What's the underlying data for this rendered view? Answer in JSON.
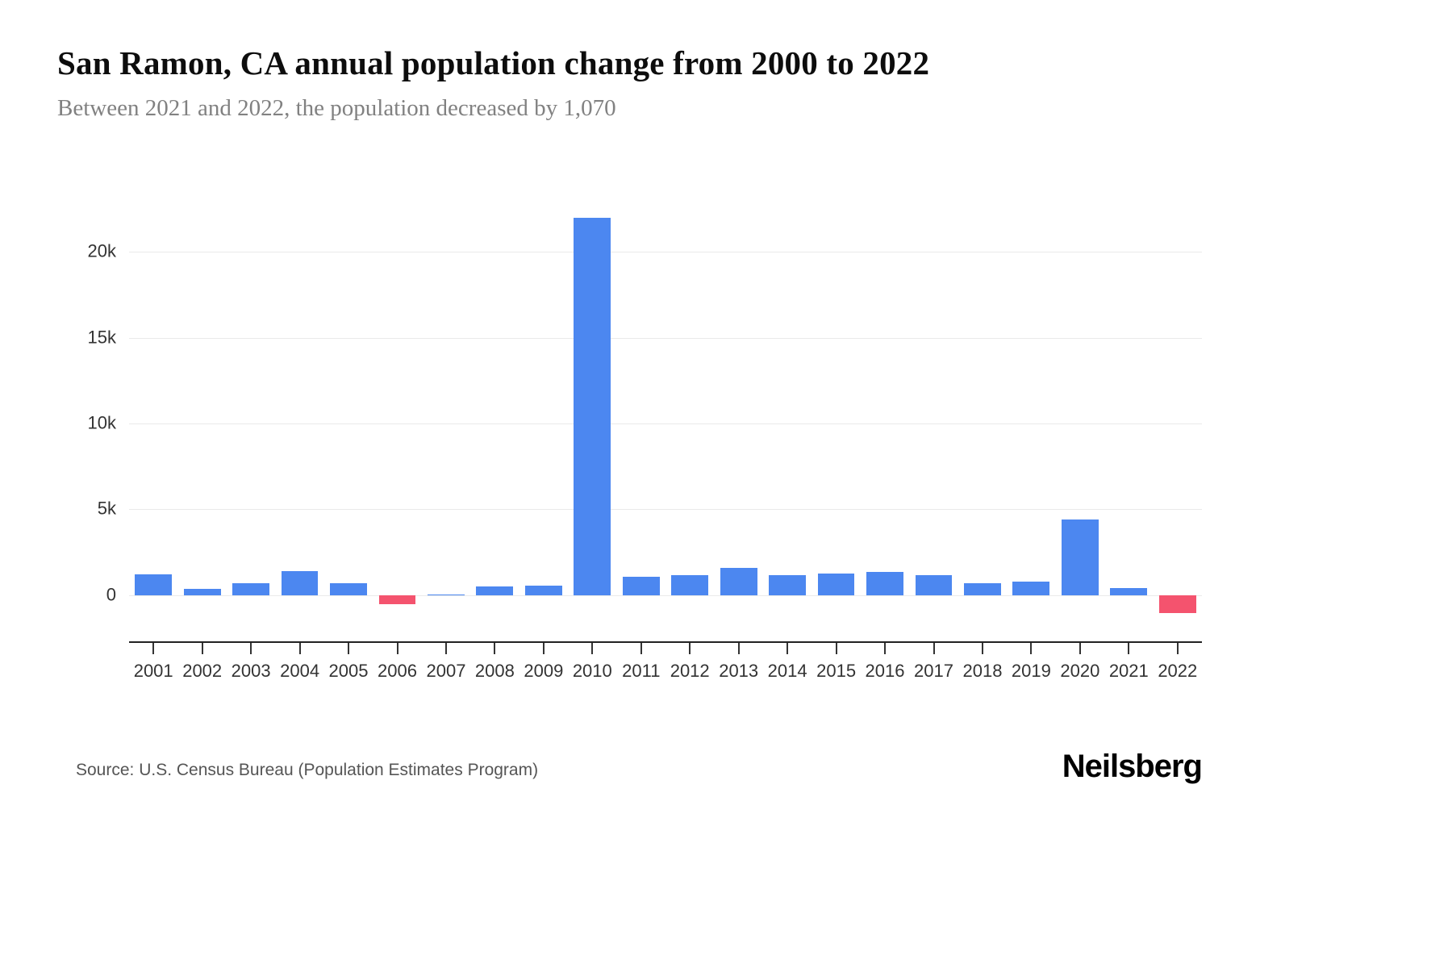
{
  "header": {
    "title": "San Ramon, CA annual population change from 2000 to 2022",
    "subtitle": "Between 2021 and 2022, the population decreased by 1,070"
  },
  "footer": {
    "source": "Source: U.S. Census Bureau (Population Estimates Program)",
    "logo": "Neilsberg"
  },
  "colors": {
    "positive": "#4c87f0",
    "negative": "#f4536e",
    "grid": "#eaeaea",
    "axis": "#222222",
    "tick_text": "#333333"
  },
  "chart_data": {
    "type": "bar",
    "title": "San Ramon, CA annual population change from 2000 to 2022",
    "subtitle": "Between 2021 and 2022, the population decreased by 1,070",
    "xlabel": "",
    "ylabel": "",
    "categories": [
      "2001",
      "2002",
      "2003",
      "2004",
      "2005",
      "2006",
      "2007",
      "2008",
      "2009",
      "2010",
      "2011",
      "2012",
      "2013",
      "2014",
      "2015",
      "2016",
      "2017",
      "2018",
      "2019",
      "2020",
      "2021",
      "2022"
    ],
    "values": [
      1200,
      380,
      700,
      1400,
      700,
      -550,
      50,
      500,
      550,
      22000,
      1050,
      1150,
      1600,
      1150,
      1250,
      1350,
      1150,
      700,
      800,
      4400,
      420,
      -1070
    ],
    "ylim": [
      -2700,
      23400
    ],
    "yticks": [
      0,
      5000,
      10000,
      15000,
      20000
    ],
    "ytick_labels": [
      "0",
      "5k",
      "10k",
      "15k",
      "20k"
    ],
    "grid": true,
    "legend": "none",
    "positive_color": "#4c87f0",
    "negative_color": "#f4536e"
  }
}
